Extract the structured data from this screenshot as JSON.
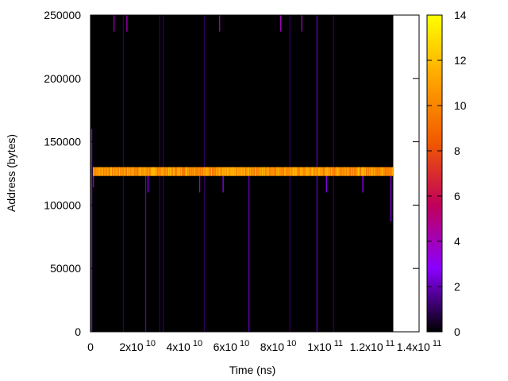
{
  "chart_data": {
    "type": "heatmap",
    "xlabel": "Time (ns)",
    "ylabel": "Address (bytes)",
    "xlim": [
      0,
      140000000000
    ],
    "ylim": [
      0,
      250000
    ],
    "x_ticks": [
      {
        "value": 0,
        "base": "0",
        "exp": ""
      },
      {
        "value": 20000000000,
        "base": "2x10",
        "exp": "10"
      },
      {
        "value": 40000000000,
        "base": "4x10",
        "exp": "10"
      },
      {
        "value": 60000000000,
        "base": "6x10",
        "exp": "10"
      },
      {
        "value": 80000000000,
        "base": "8x10",
        "exp": "10"
      },
      {
        "value": 100000000000,
        "base": "1x10",
        "exp": "11"
      },
      {
        "value": 120000000000,
        "base": "1.2x10",
        "exp": "11"
      },
      {
        "value": 140000000000,
        "base": "1.4x10",
        "exp": "11"
      }
    ],
    "y_ticks": [
      {
        "value": 0,
        "label": "0"
      },
      {
        "value": 50000,
        "label": "50000"
      },
      {
        "value": 100000,
        "label": "100000"
      },
      {
        "value": 150000,
        "label": "150000"
      },
      {
        "value": 200000,
        "label": "200000"
      },
      {
        "value": 250000,
        "label": "250000"
      }
    ],
    "colorbar": {
      "range": [
        0,
        14
      ],
      "ticks": [
        "0",
        "2",
        "4",
        "6",
        "8",
        "10",
        "12",
        "14"
      ],
      "palette": [
        "#000000",
        "#8a00ff",
        "#c0005a",
        "#f05a00",
        "#ffa500",
        "#ffff00"
      ]
    },
    "data_extent_x": [
      0,
      129000000000
    ],
    "background_value": 0,
    "bands": [
      {
        "x_start": 1000000000,
        "x_end": 129000000000,
        "y_start": 123000,
        "y_end": 130000,
        "value_range": [
          8,
          12
        ]
      }
    ],
    "spikes": [
      {
        "x": 500000000,
        "y_start": 0,
        "y_end": 160000,
        "value": 3
      },
      {
        "x": 1200000000,
        "y_start": 114000,
        "y_end": 126000,
        "value": 4
      },
      {
        "x": 10000000000,
        "y_start": 237000,
        "y_end": 250000,
        "value": 4
      },
      {
        "x": 14000000000,
        "y_start": 0,
        "y_end": 250000,
        "value": 1
      },
      {
        "x": 15500000000,
        "y_start": 237000,
        "y_end": 250000,
        "value": 4
      },
      {
        "x": 23500000000,
        "y_start": 0,
        "y_end": 130000,
        "value": 2
      },
      {
        "x": 24500000000,
        "y_start": 110000,
        "y_end": 125000,
        "value": 3
      },
      {
        "x": 29500000000,
        "y_start": 0,
        "y_end": 250000,
        "value": 1
      },
      {
        "x": 31000000000,
        "y_start": 0,
        "y_end": 250000,
        "value": 1
      },
      {
        "x": 46500000000,
        "y_start": 110000,
        "y_end": 125000,
        "value": 3
      },
      {
        "x": 48500000000,
        "y_start": 0,
        "y_end": 250000,
        "value": 1
      },
      {
        "x": 55000000000,
        "y_start": 237000,
        "y_end": 250000,
        "value": 4
      },
      {
        "x": 56500000000,
        "y_start": 110000,
        "y_end": 125000,
        "value": 3
      },
      {
        "x": 67500000000,
        "y_start": 0,
        "y_end": 125000,
        "value": 2
      },
      {
        "x": 81000000000,
        "y_start": 237000,
        "y_end": 250000,
        "value": 4
      },
      {
        "x": 85000000000,
        "y_start": 0,
        "y_end": 250000,
        "value": 1
      },
      {
        "x": 90000000000,
        "y_start": 237000,
        "y_end": 250000,
        "value": 4
      },
      {
        "x": 96500000000,
        "y_start": 0,
        "y_end": 250000,
        "value": 2
      },
      {
        "x": 100500000000,
        "y_start": 110000,
        "y_end": 125000,
        "value": 3
      },
      {
        "x": 103500000000,
        "y_start": 0,
        "y_end": 250000,
        "value": 1
      },
      {
        "x": 116000000000,
        "y_start": 110000,
        "y_end": 125000,
        "value": 3
      },
      {
        "x": 128000000000,
        "y_start": 87000,
        "y_end": 125000,
        "value": 3
      }
    ]
  }
}
